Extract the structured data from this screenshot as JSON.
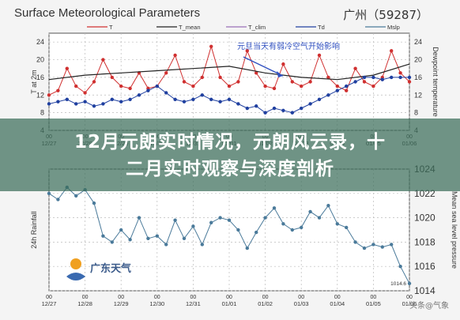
{
  "header": {
    "title": "Surface Meteorological Parameters",
    "station": "广州（59287）"
  },
  "banner": {
    "line1": "12月元朗实时情况，元朗风云录，十",
    "line2": "二月实时观察与深度剖析"
  },
  "logo": {
    "text": "广东天气"
  },
  "watermark": "头条@气象",
  "colors": {
    "T": "#d03030",
    "T_mean": "#222222",
    "T_clim": "#9a6fb8",
    "Td": "#2040a0",
    "Mslp": "#4a7a9a",
    "Rain": "#4a7a9a",
    "annotation": "#3050c0"
  },
  "chart_data": [
    {
      "type": "line",
      "panel": "top",
      "ylabel_left": "T at 2m",
      "ylabel_right": "Dewpoint temperature",
      "ylim": [
        4,
        26
      ],
      "yticks": [
        4,
        8,
        12,
        16,
        20,
        24
      ],
      "grid": true,
      "legend_placement": "top",
      "xticks": [
        "12/27",
        "12/28",
        "12/29",
        "12/30",
        "12/31",
        "01/01",
        "01/02",
        "01/03",
        "01/04",
        "01/05",
        "01/06"
      ],
      "xticks_hour": [
        "00",
        "00",
        "00",
        "00",
        "00",
        "00",
        "00",
        "00",
        "00",
        "00",
        "00"
      ],
      "annotation": "元旦当天有弱冷空气开始影响",
      "legend": [
        "T",
        "T_mean",
        "T_clim",
        "Td",
        "Mslp"
      ],
      "series": [
        {
          "name": "T",
          "x": [
            0,
            0.25,
            0.5,
            0.75,
            1,
            1.25,
            1.5,
            1.75,
            2,
            2.25,
            2.5,
            2.75,
            3,
            3.25,
            3.5,
            3.75,
            4,
            4.25,
            4.5,
            4.75,
            5,
            5.25,
            5.5,
            5.75,
            6,
            6.25,
            6.5,
            6.75,
            7,
            7.25,
            7.5,
            7.75,
            8,
            8.25,
            8.5,
            8.75,
            9,
            9.25,
            9.5,
            9.75,
            10
          ],
          "values": [
            12,
            13,
            18,
            14,
            12.5,
            15,
            20,
            16,
            14,
            13.5,
            17,
            13.5,
            14,
            17,
            21,
            15,
            14,
            16,
            23,
            16,
            14,
            15,
            22,
            17,
            14,
            13.5,
            19,
            15,
            14,
            15,
            21,
            16,
            14,
            13,
            18,
            15,
            14,
            16,
            22,
            17,
            15
          ]
        },
        {
          "name": "T_mean",
          "x": [
            0,
            1,
            2,
            3,
            4,
            5,
            6,
            7,
            8,
            9,
            10
          ],
          "values": [
            15.5,
            16.5,
            17,
            17.5,
            18,
            18.5,
            17,
            16,
            15.5,
            16.5,
            19
          ]
        },
        {
          "name": "Td",
          "x": [
            0,
            0.25,
            0.5,
            0.75,
            1,
            1.25,
            1.5,
            1.75,
            2,
            2.25,
            2.5,
            2.75,
            3,
            3.25,
            3.5,
            3.75,
            4,
            4.25,
            4.5,
            4.75,
            5,
            5.25,
            5.5,
            5.75,
            6,
            6.25,
            6.5,
            6.75,
            7,
            7.25,
            7.5,
            7.75,
            8,
            8.25,
            8.5,
            8.75,
            9,
            9.25,
            9.5,
            9.75,
            10
          ],
          "values": [
            10,
            10.5,
            11,
            10,
            10.5,
            9.5,
            10,
            11,
            10.5,
            11,
            12,
            13,
            14,
            12.5,
            11,
            10.5,
            11,
            12,
            11,
            10.5,
            11,
            10,
            9,
            9.5,
            8,
            9,
            8.5,
            8,
            9,
            10,
            11,
            12,
            13,
            14,
            15,
            16,
            16,
            15.5,
            16,
            16,
            16
          ]
        }
      ]
    },
    {
      "type": "line",
      "panel": "bottom",
      "ylabel_left": "24h Rainfall",
      "ylabel_right": "Mean sea level pressure",
      "ylim": [
        1014,
        1024
      ],
      "yticks": [
        1014,
        1016,
        1018,
        1020,
        1022,
        1024
      ],
      "grid": true,
      "xticks": [
        "12/27",
        "12/28",
        "12/29",
        "12/30",
        "12/31",
        "01/01",
        "01/02",
        "01/03",
        "01/04",
        "01/05",
        "01/06"
      ],
      "xticks_hour": [
        "00",
        "00",
        "00",
        "00",
        "00",
        "00",
        "00",
        "00",
        "00",
        "00",
        "00"
      ],
      "min_label": "1014.6",
      "series": [
        {
          "name": "Mslp",
          "x": [
            0,
            0.25,
            0.5,
            0.75,
            1,
            1.25,
            1.5,
            1.75,
            2,
            2.25,
            2.5,
            2.75,
            3,
            3.25,
            3.5,
            3.75,
            4,
            4.25,
            4.5,
            4.75,
            5,
            5.25,
            5.5,
            5.75,
            6,
            6.25,
            6.5,
            6.75,
            7,
            7.25,
            7.5,
            7.75,
            8,
            8.25,
            8.5,
            8.75,
            9,
            9.25,
            9.5,
            9.75,
            10
          ],
          "values": [
            1022,
            1021.5,
            1022.5,
            1021.8,
            1022.3,
            1021.2,
            1018.5,
            1018,
            1019,
            1018.2,
            1020,
            1018.3,
            1018.5,
            1017.8,
            1019.8,
            1018.3,
            1019.3,
            1017.8,
            1019.6,
            1020,
            1019.8,
            1019,
            1017.5,
            1018.8,
            1020,
            1020.8,
            1019.5,
            1019,
            1019.2,
            1020.5,
            1020,
            1021,
            1019.5,
            1019.2,
            1018,
            1017.5,
            1017.8,
            1017.6,
            1017.8,
            1016,
            1014.6
          ]
        }
      ]
    }
  ]
}
